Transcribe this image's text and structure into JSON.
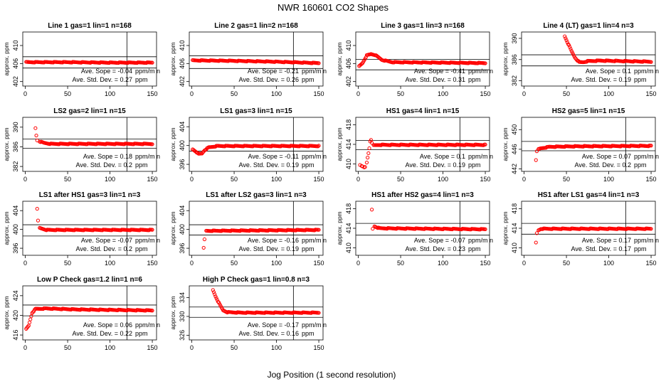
{
  "figure": {
    "title": "NWR  160601  CO2 Shapes",
    "xlabel": "Jog Position (1 second resolution)",
    "colors": {
      "points": "#ff0000",
      "axes": "#000000",
      "background": "#ffffff"
    }
  },
  "chart_data": [
    {
      "type": "scatter",
      "title": "Line 1 gas=1 lin=1 n=168",
      "ylabel": "approx. ppm",
      "xlim": [
        -3,
        155
      ],
      "ylim": [
        401,
        413
      ],
      "yticks": [
        402,
        406,
        410
      ],
      "xticks": [
        0,
        50,
        100,
        150
      ],
      "vline": 120,
      "hlines": [
        407.5,
        405.0
      ],
      "shape": {
        "x_start": 1,
        "x_end": 150,
        "points": [
          [
            1,
            406.3
          ],
          [
            50,
            406.3
          ],
          [
            100,
            406.2
          ],
          [
            150,
            406.2
          ]
        ]
      },
      "stats": {
        "slope_label": "Ave. Sope =",
        "slope": "-0.04",
        "slope_unit": "ppm/m n",
        "sd_label": "Ave. Std. Dev. =",
        "sd": "0.27",
        "sd_unit": "ppm"
      }
    },
    {
      "type": "scatter",
      "title": "Line 2 gas=1 lin=2 n=168",
      "ylabel": "approx. ppm",
      "xlim": [
        -3,
        155
      ],
      "ylim": [
        401,
        413
      ],
      "yticks": [
        402,
        406,
        410
      ],
      "xticks": [
        0,
        50,
        100,
        150
      ],
      "vline": 120,
      "hlines": [
        407.7,
        404.9
      ],
      "shape": {
        "x_start": 1,
        "x_end": 150,
        "points": [
          [
            1,
            406.7
          ],
          [
            50,
            406.6
          ],
          [
            100,
            406.4
          ],
          [
            150,
            406.1
          ]
        ]
      },
      "stats": {
        "slope_label": "Ave. Sope =",
        "slope": "-0.21",
        "slope_unit": "ppm/m n",
        "sd_label": "Ave. Std. Dev. =",
        "sd": "0.26",
        "sd_unit": "ppm"
      }
    },
    {
      "type": "scatter",
      "title": "Line 3 gas=1 lin=3 n=168",
      "ylabel": "approx. ppm",
      "xlim": [
        -3,
        155
      ],
      "ylim": [
        401,
        413
      ],
      "yticks": [
        402,
        406,
        410
      ],
      "xticks": [
        0,
        50,
        100,
        150
      ],
      "vline": 120,
      "hlines": [
        406.9,
        404.6
      ],
      "shape": {
        "x_start": 1,
        "x_end": 150,
        "points": [
          [
            1,
            405.4
          ],
          [
            5,
            406.1
          ],
          [
            10,
            407.8
          ],
          [
            15,
            408.1
          ],
          [
            20,
            407.9
          ],
          [
            28,
            406.8
          ],
          [
            40,
            406.3
          ],
          [
            100,
            406.2
          ],
          [
            150,
            406.1
          ]
        ]
      },
      "stats": {
        "slope_label": "Ave. Sope =",
        "slope": "-0.41",
        "slope_unit": "ppm/m n",
        "sd_label": "Ave. Std. Dev. =",
        "sd": "0.31",
        "sd_unit": "ppm"
      }
    },
    {
      "type": "scatter",
      "title": "Line 4 (LT) gas=1 lin=4 n=3",
      "ylabel": "approx. ppm",
      "xlim": [
        -3,
        155
      ],
      "ylim": [
        381,
        391.2
      ],
      "yticks": [
        382,
        386,
        390
      ],
      "xticks": [
        0,
        50,
        100,
        150
      ],
      "vline": 120,
      "hlines": [
        386.9,
        384.8
      ],
      "shape": {
        "x_start": 48,
        "x_end": 150,
        "points": [
          [
            48,
            390.4
          ],
          [
            52,
            389.0
          ],
          [
            56,
            387.6
          ],
          [
            60,
            386.4
          ],
          [
            65,
            385.5
          ],
          [
            70,
            385.5
          ],
          [
            75,
            385.7
          ],
          [
            90,
            385.8
          ],
          [
            120,
            385.7
          ],
          [
            150,
            385.6
          ]
        ]
      },
      "stats": {
        "slope_label": "Ave. Sope =",
        "slope": "0.1",
        "slope_unit": "ppm/m n",
        "sd_label": "Ave. Std. Dev. =",
        "sd": "0.19",
        "sd_unit": "ppm"
      }
    },
    {
      "type": "scatter",
      "title": "LS2 gas=2 lin=1 n=15",
      "ylabel": "approx. ppm",
      "xlim": [
        -3,
        155
      ],
      "ylim": [
        381,
        392
      ],
      "yticks": [
        382,
        386,
        390
      ],
      "xticks": [
        0,
        50,
        100,
        150
      ],
      "vline": 120,
      "hlines": [
        387.6,
        385.7
      ],
      "shape": {
        "x_start": 17,
        "x_end": 150,
        "points": [
          [
            17,
            387.1
          ],
          [
            22,
            386.8
          ],
          [
            30,
            386.6
          ],
          [
            150,
            386.6
          ]
        ]
      },
      "outliers": [
        [
          12,
          389.8
        ],
        [
          13,
          388.3
        ],
        [
          14,
          387.3
        ]
      ],
      "stats": {
        "slope_label": "Ave. Sope =",
        "slope": "0.18",
        "slope_unit": "ppm/m n",
        "sd_label": "Ave. Std. Dev. =",
        "sd": "0.2",
        "sd_unit": "ppm"
      }
    },
    {
      "type": "scatter",
      "title": "LS1 gas=3 lin=1 n=15",
      "ylabel": "approx. ppm",
      "xlim": [
        -3,
        155
      ],
      "ylim": [
        394.5,
        406
      ],
      "yticks": [
        396,
        400,
        404
      ],
      "xticks": [
        0,
        50,
        100,
        150
      ],
      "vline": 120,
      "hlines": [
        401.0,
        398.8
      ],
      "shape": {
        "x_start": 1,
        "x_end": 150,
        "points": [
          [
            1,
            399.2
          ],
          [
            5,
            398.7
          ],
          [
            8,
            398.2
          ],
          [
            12,
            398.3
          ],
          [
            15,
            399.0
          ],
          [
            20,
            399.6
          ],
          [
            30,
            399.9
          ],
          [
            150,
            399.9
          ]
        ]
      },
      "stats": {
        "slope_label": "Ave. Sope =",
        "slope": "-0.11",
        "slope_unit": "ppm/m n",
        "sd_label": "Ave. Std. Dev. =",
        "sd": "0.19",
        "sd_unit": "ppm"
      }
    },
    {
      "type": "scatter",
      "title": "HS1 gas=4 lin=1 n=15",
      "ylabel": "approx. ppm",
      "xlim": [
        -3,
        155
      ],
      "ylim": [
        408.5,
        419.5
      ],
      "yticks": [
        410,
        414,
        418
      ],
      "xticks": [
        0,
        50,
        100,
        150
      ],
      "vline": 120,
      "hlines": [
        414.8,
        412.9
      ],
      "shape": {
        "x_start": 18,
        "x_end": 150,
        "points": [
          [
            18,
            413.8
          ],
          [
            25,
            413.9
          ],
          [
            150,
            413.9
          ]
        ]
      },
      "outliers": [
        [
          2,
          409.8
        ],
        [
          4,
          409.6
        ],
        [
          5,
          409.5
        ],
        [
          7,
          409.3
        ],
        [
          8,
          409.4
        ],
        [
          10,
          410.3
        ],
        [
          11,
          411.3
        ],
        [
          12,
          412.2
        ],
        [
          13,
          413.2
        ],
        [
          14,
          414.6
        ],
        [
          15,
          414.9
        ],
        [
          16,
          414.3
        ]
      ],
      "stats": {
        "slope_label": "Ave. Sope =",
        "slope": "0.1",
        "slope_unit": "ppm/m n",
        "sd_label": "Ave. Std. Dev. =",
        "sd": "0.19",
        "sd_unit": "ppm"
      }
    },
    {
      "type": "scatter",
      "title": "HS2 gas=5 lin=1 n=15",
      "ylabel": "approx. ppm",
      "xlim": [
        -3,
        155
      ],
      "ylim": [
        441.5,
        452.5
      ],
      "yticks": [
        442,
        446,
        450
      ],
      "xticks": [
        0,
        50,
        100,
        150
      ],
      "vline": 120,
      "hlines": [
        447.6,
        445.7
      ],
      "shape": {
        "x_start": 17,
        "x_end": 150,
        "points": [
          [
            17,
            446.0
          ],
          [
            20,
            446.2
          ],
          [
            30,
            446.5
          ],
          [
            60,
            446.6
          ],
          [
            150,
            446.7
          ]
        ]
      },
      "outliers": [
        [
          14,
          443.8
        ],
        [
          15,
          445.6
        ]
      ],
      "stats": {
        "slope_label": "Ave. Sope =",
        "slope": "0.07",
        "slope_unit": "ppm/m n",
        "sd_label": "Ave. Std. Dev. =",
        "sd": "0.2",
        "sd_unit": "ppm"
      }
    },
    {
      "type": "scatter",
      "title": "LS1 after HS1 gas=3 lin=1 n=3",
      "ylabel": "approx. ppm",
      "xlim": [
        -3,
        155
      ],
      "ylim": [
        394.5,
        406
      ],
      "yticks": [
        396,
        400,
        404
      ],
      "xticks": [
        0,
        50,
        100,
        150
      ],
      "vline": 120,
      "hlines": [
        401.0,
        398.6
      ],
      "shape": {
        "x_start": 17,
        "x_end": 150,
        "points": [
          [
            17,
            400.3
          ],
          [
            25,
            399.9
          ],
          [
            150,
            399.9
          ]
        ]
      },
      "outliers": [
        [
          14,
          404.4
        ],
        [
          15,
          401.9
        ]
      ],
      "stats": {
        "slope_label": "Ave. Sope =",
        "slope": "-0.07",
        "slope_unit": "ppm/m n",
        "sd_label": "Ave. Std. Dev. =",
        "sd": "0.2",
        "sd_unit": "ppm"
      }
    },
    {
      "type": "scatter",
      "title": "LS1 after LS2 gas=3 lin=1 n=3",
      "ylabel": "approx. ppm",
      "xlim": [
        -3,
        155
      ],
      "ylim": [
        394.5,
        406
      ],
      "yticks": [
        396,
        400,
        404
      ],
      "xticks": [
        0,
        50,
        100,
        150
      ],
      "vline": 120,
      "hlines": [
        401.0,
        398.8
      ],
      "shape": {
        "x_start": 17,
        "x_end": 150,
        "points": [
          [
            17,
            399.7
          ],
          [
            150,
            399.9
          ]
        ]
      },
      "outliers": [
        [
          14,
          396.1
        ],
        [
          15,
          397.9
        ]
      ],
      "stats": {
        "slope_label": "Ave. Sope =",
        "slope": "-0.16",
        "slope_unit": "ppm/m n",
        "sd_label": "Ave. Std. Dev. =",
        "sd": "0.19",
        "sd_unit": "ppm"
      }
    },
    {
      "type": "scatter",
      "title": "HS1 after HS2 gas=4 lin=1 n=3",
      "ylabel": "approx. ppm",
      "xlim": [
        -3,
        155
      ],
      "ylim": [
        408.5,
        419.5
      ],
      "yticks": [
        410,
        414,
        418
      ],
      "xticks": [
        0,
        50,
        100,
        150
      ],
      "vline": 120,
      "hlines": [
        415.0,
        412.6
      ],
      "shape": {
        "x_start": 19,
        "x_end": 150,
        "points": [
          [
            19,
            414.4
          ],
          [
            25,
            414.0
          ],
          [
            150,
            413.8
          ]
        ]
      },
      "outliers": [
        [
          16,
          417.8
        ],
        [
          17,
          413.9
        ]
      ],
      "stats": {
        "slope_label": "Ave. Sope =",
        "slope": "-0.07",
        "slope_unit": "ppm/m n",
        "sd_label": "Ave. Std. Dev. =",
        "sd": "0.23",
        "sd_unit": "ppm"
      }
    },
    {
      "type": "scatter",
      "title": "HS1 after LS1 gas=4 lin=1 n=3",
      "ylabel": "approx. ppm",
      "xlim": [
        -3,
        155
      ],
      "ylim": [
        408.5,
        419.5
      ],
      "yticks": [
        410,
        414,
        418
      ],
      "xticks": [
        0,
        50,
        100,
        150
      ],
      "vline": 120,
      "hlines": [
        415.0,
        412.8
      ],
      "shape": {
        "x_start": 17,
        "x_end": 150,
        "points": [
          [
            17,
            413.6
          ],
          [
            20,
            413.9
          ],
          [
            150,
            413.9
          ]
        ]
      },
      "outliers": [
        [
          14,
          411.1
        ],
        [
          15,
          413.0
        ]
      ],
      "stats": {
        "slope_label": "Ave. Sope =",
        "slope": "0.17",
        "slope_unit": "ppm/m n",
        "sd_label": "Ave. Std. Dev. =",
        "sd": "0.17",
        "sd_unit": "ppm"
      }
    },
    {
      "type": "scatter",
      "title": "Low P Check gas=1.2 lin=1 n=6",
      "ylabel": "approx. ppm",
      "xlim": [
        -3,
        155
      ],
      "ylim": [
        415,
        426
      ],
      "yticks": [
        416,
        420,
        424
      ],
      "xticks": [
        0,
        50,
        100,
        150
      ],
      "vline": 120,
      "hlines": [
        422.1,
        419.9
      ],
      "shape": {
        "x_start": 1,
        "x_end": 150,
        "points": [
          [
            1,
            417.2
          ],
          [
            4,
            417.9
          ],
          [
            6,
            419.2
          ],
          [
            8,
            420.5
          ],
          [
            12,
            421.3
          ],
          [
            25,
            421.4
          ],
          [
            60,
            421.2
          ],
          [
            150,
            421.0
          ]
        ]
      },
      "stats": {
        "slope_label": "Ave. Sope =",
        "slope": "0.06",
        "slope_unit": "ppm/m n",
        "sd_label": "Ave. Std. Dev. =",
        "sd": "0.22",
        "sd_unit": "ppm"
      }
    },
    {
      "type": "scatter",
      "title": "High P Check gas=1 lin=0.8 n=3",
      "ylabel": "approx. ppm",
      "xlim": [
        -3,
        155
      ],
      "ylim": [
        325,
        336.5
      ],
      "yticks": [
        326,
        330,
        334
      ],
      "xticks": [
        0,
        50,
        100,
        150
      ],
      "vline": 120,
      "hlines": [
        332.0,
        329.8
      ],
      "shape": {
        "x_start": 25,
        "x_end": 150,
        "points": [
          [
            25,
            335.6
          ],
          [
            28,
            334.3
          ],
          [
            31,
            333.2
          ],
          [
            34,
            332.2
          ],
          [
            37,
            331.3
          ],
          [
            42,
            330.9
          ],
          [
            60,
            330.8
          ],
          [
            150,
            330.8
          ]
        ]
      },
      "stats": {
        "slope_label": "Ave. Sope =",
        "slope": "-0.17",
        "slope_unit": "ppm/m n",
        "sd_label": "Ave. Std. Dev. =",
        "sd": "0.16",
        "sd_unit": "ppm"
      }
    }
  ]
}
